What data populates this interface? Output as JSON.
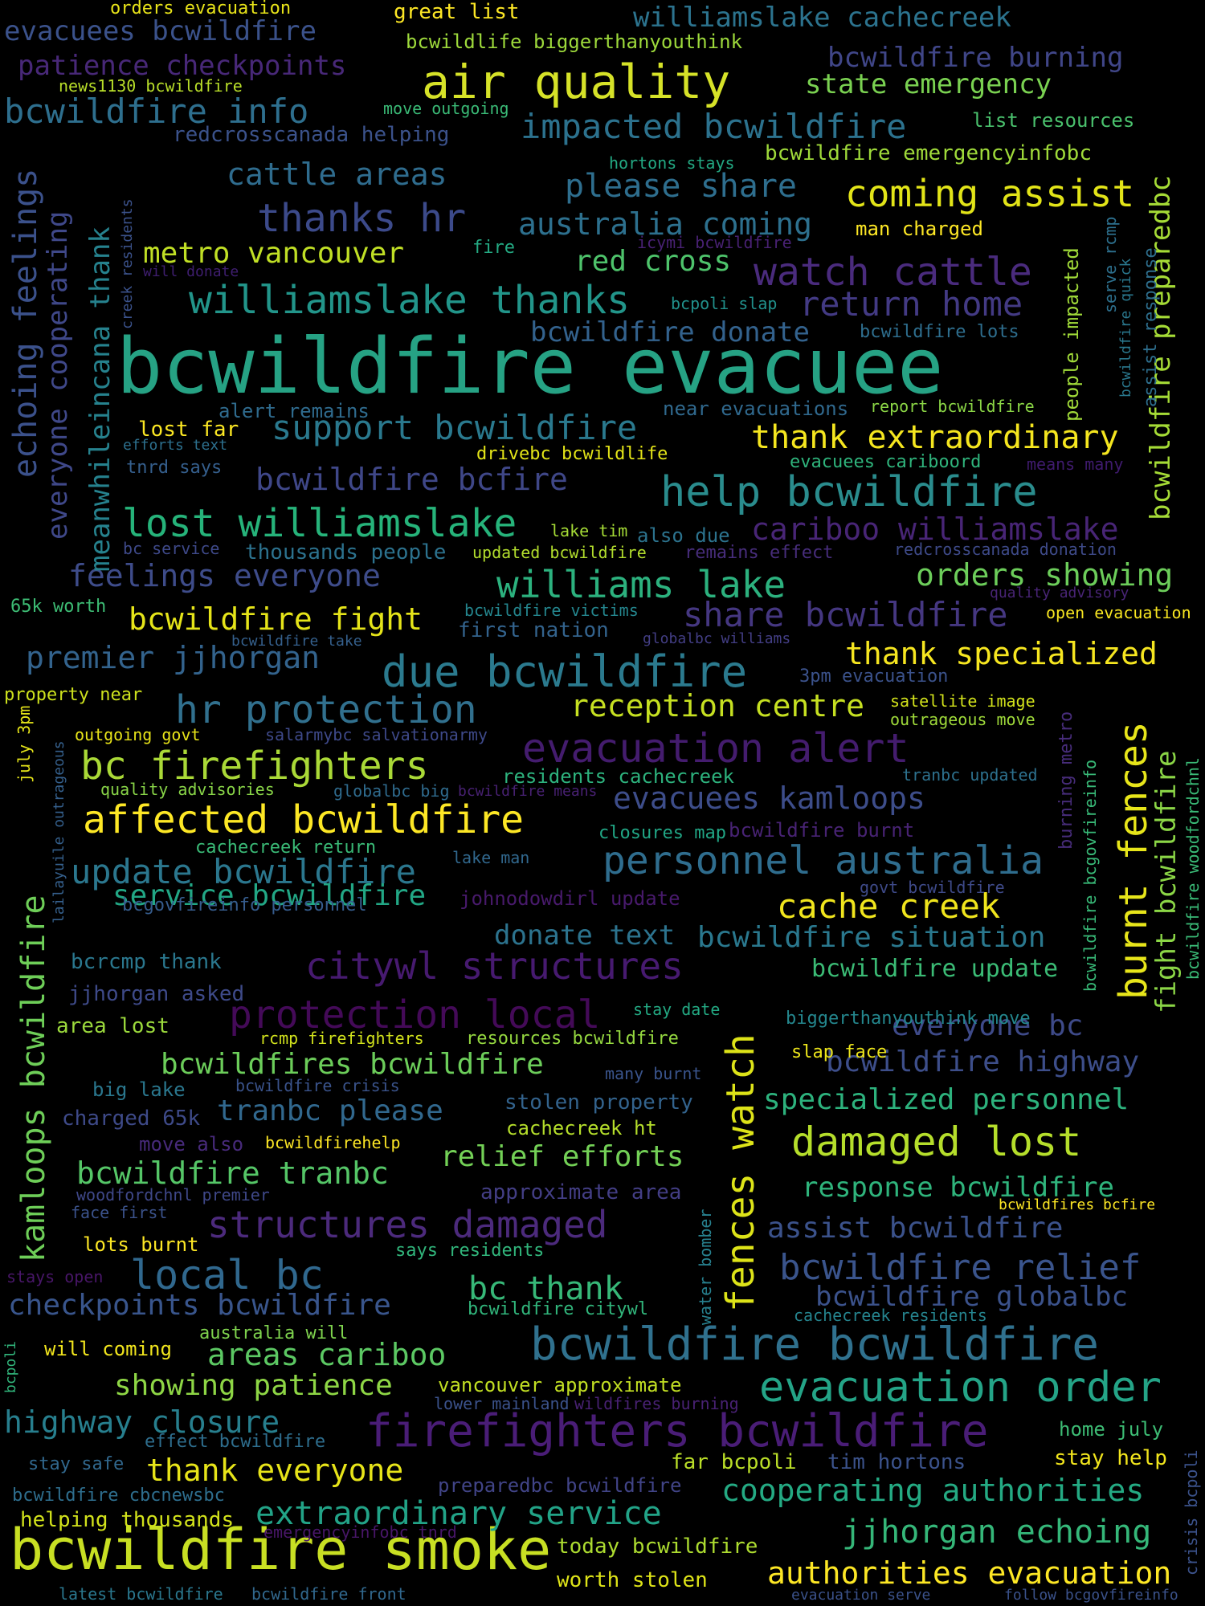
{
  "words": [
    {
      "text": "bcwildfire evacuee",
      "color": "#26a284"
    },
    {
      "text": "bcwildfire smoke",
      "color": "#c8df23"
    },
    {
      "text": "firefighters bcwildfire",
      "color": "#4a1d77"
    },
    {
      "text": "bcwildfire bcwildfire",
      "color": "#30718e"
    },
    {
      "text": "air quality",
      "color": "#d6e228"
    },
    {
      "text": "evacuation alert",
      "color": "#441c6e"
    },
    {
      "text": "due bcwildfire",
      "color": "#2b7a8e"
    },
    {
      "text": "citywl structures",
      "color": "#471a70"
    },
    {
      "text": "protection local",
      "color": "#440a58"
    },
    {
      "text": "structures damaged",
      "color": "#4c2a7c"
    },
    {
      "text": "evacuation order",
      "color": "#24a487"
    },
    {
      "text": "affected bcwildfire",
      "color": "#fde725"
    },
    {
      "text": "help bcwildfire",
      "color": "#2a8c8d"
    },
    {
      "text": "lost williamslake",
      "color": "#26b37a"
    },
    {
      "text": "williamslake thanks",
      "color": "#22958a"
    },
    {
      "text": "bc firefighters",
      "color": "#aad937"
    },
    {
      "text": "hr protection",
      "color": "#31708e"
    },
    {
      "text": "watch cattle",
      "color": "#4a2b7d"
    },
    {
      "text": "return home",
      "color": "#433a84"
    },
    {
      "text": "thanks hr",
      "color": "#3c4a8a"
    },
    {
      "text": "coming assist",
      "color": "#e2e418"
    },
    {
      "text": "fences watch",
      "color": "#dde318"
    },
    {
      "text": "burnt fences",
      "color": "#e7e51a"
    },
    {
      "text": "personnel australia",
      "color": "#2f6d8e"
    },
    {
      "text": "kamloops bcwildfire",
      "color": "#6ece58"
    },
    {
      "text": "bcwildfire relief",
      "color": "#3a548c"
    },
    {
      "text": "damaged lost",
      "color": "#b5de2b"
    },
    {
      "text": "impacted bcwildfire",
      "color": "#2c728e"
    },
    {
      "text": "cache creek",
      "color": "#f0e51d"
    },
    {
      "text": "williams lake",
      "color": "#2cb17e"
    },
    {
      "text": "update bcwildfire",
      "color": "#2b778e"
    },
    {
      "text": "local bc",
      "color": "#30688e"
    },
    {
      "text": "echoing feelings",
      "color": "#3b518b"
    },
    {
      "text": "bcwildfire info",
      "color": "#2e6f8e"
    },
    {
      "text": "jjhorgan echoing",
      "color": "#35b779"
    },
    {
      "text": "authorities evacuation",
      "color": "#fde725"
    },
    {
      "text": "extraordinary service",
      "color": "#22a387"
    },
    {
      "text": "cooperating authorities",
      "color": "#24aa83"
    },
    {
      "text": "support bcwildfire",
      "color": "#2a798e"
    },
    {
      "text": "thank extraordinary",
      "color": "#f5e61f"
    },
    {
      "text": "bcwildfire bcfire",
      "color": "#3f4788"
    },
    {
      "text": "share bcwildfire",
      "color": "#453781"
    },
    {
      "text": "feelings everyone",
      "color": "#3e4c8a"
    },
    {
      "text": "bcwildfire fight",
      "color": "#e5e419"
    },
    {
      "text": "premier jjhorgan",
      "color": "#33638d"
    },
    {
      "text": "reception centre",
      "color": "#c6e021"
    },
    {
      "text": "evacuees kamloops",
      "color": "#3d4d8a"
    },
    {
      "text": "checkpoints bcwildfire",
      "color": "#39558c"
    },
    {
      "text": "bcwildfire tranbc",
      "color": "#55c667"
    },
    {
      "text": "highway closure",
      "color": "#277f8e"
    },
    {
      "text": "thank everyone",
      "color": "#e7e419"
    },
    {
      "text": "areas cariboo",
      "color": "#5cc863"
    },
    {
      "text": "showing patience",
      "color": "#8ed645"
    },
    {
      "text": "patience checkpoints",
      "color": "#482878"
    },
    {
      "text": "evacuees bcwildfire",
      "color": "#3b528b"
    },
    {
      "text": "williamslake cachecreek",
      "color": "#2c738e"
    },
    {
      "text": "bcwildfire burning",
      "color": "#404688"
    },
    {
      "text": "state emergency",
      "color": "#7ad151"
    },
    {
      "text": "please share",
      "color": "#2e6e8e"
    },
    {
      "text": "australia coming",
      "color": "#2d708e"
    },
    {
      "text": "cattle areas",
      "color": "#2f6c8e"
    },
    {
      "text": "metro vancouver",
      "color": "#c0df25"
    },
    {
      "text": "red cross",
      "color": "#4ec36b"
    },
    {
      "text": "bcwildfire donate",
      "color": "#33628d"
    },
    {
      "text": "everyone cooperating",
      "color": "#3f4889"
    },
    {
      "text": "meanwhileincana thank",
      "color": "#26828e"
    },
    {
      "text": "bcwildfire preparedbc",
      "color": "#a5db36"
    },
    {
      "text": "cariboo williamslake",
      "color": "#482576"
    },
    {
      "text": "orders showing",
      "color": "#6ccd5a"
    },
    {
      "text": "thank specialized",
      "color": "#f6e620"
    },
    {
      "text": "fight bcwildfire",
      "color": "#8bd646"
    },
    {
      "text": "service bcwildfire",
      "color": "#22a785"
    },
    {
      "text": "donate text",
      "color": "#2c738e"
    },
    {
      "text": "bcwildfire situation",
      "color": "#2a788e"
    },
    {
      "text": "bcwildfire update",
      "color": "#3bbb75"
    },
    {
      "text": "everyone bc",
      "color": "#3e4a89"
    },
    {
      "text": "bcwildfire highway",
      "color": "#3d4e8a"
    },
    {
      "text": "specialized personnel",
      "color": "#2db27d"
    },
    {
      "text": "bcwildfires bcwildfire",
      "color": "#6ccd5a"
    },
    {
      "text": "tranbc please",
      "color": "#31688e"
    },
    {
      "text": "relief efforts",
      "color": "#73d056"
    },
    {
      "text": "response bcwildfire",
      "color": "#2fb47c"
    },
    {
      "text": "assist bcwildfire",
      "color": "#3b528b"
    },
    {
      "text": "bcwildfire globalbc",
      "color": "#3b528b"
    },
    {
      "text": "bc thank",
      "color": "#37b878"
    },
    {
      "text": "thousands people",
      "color": "#2c728e"
    },
    {
      "text": "alert remains",
      "color": "#2f6b8e"
    },
    {
      "text": "near evacuations",
      "color": "#30698e"
    },
    {
      "text": "lost far",
      "color": "#fbe723"
    },
    {
      "text": "drivebc bcwildlife",
      "color": "#e3e418"
    },
    {
      "text": "evacuees cariboord",
      "color": "#2fb47c"
    },
    {
      "text": "report bcwildfire",
      "color": "#8bd646"
    },
    {
      "text": "bcwildfire lots",
      "color": "#2e6e8e"
    },
    {
      "text": "man charged",
      "color": "#fde725"
    },
    {
      "text": "people impacted",
      "color": "#a0da39"
    },
    {
      "text": "assist response",
      "color": "#2e6f8e"
    },
    {
      "text": "serve rcmp",
      "color": "#2d708e"
    },
    {
      "text": "bcwildfire quick",
      "color": "#2a788e"
    },
    {
      "text": "bcpoli slap",
      "color": "#21918c"
    },
    {
      "text": "icymi bcwildfire",
      "color": "#482173"
    },
    {
      "text": "fire",
      "color": "#24aa83"
    },
    {
      "text": "will donate",
      "color": "#3f1e70"
    },
    {
      "text": "creek residents",
      "color": "#3b528b"
    },
    {
      "text": "hortons stays",
      "color": "#23a983"
    },
    {
      "text": "bcwildfire emergencyinfobc",
      "color": "#9fda3a"
    },
    {
      "text": "list resources",
      "color": "#4ac16d"
    },
    {
      "text": "redcrosscanada helping",
      "color": "#3b528b"
    },
    {
      "text": "move outgoing",
      "color": "#3aba76"
    },
    {
      "text": "news1130 bcwildfire",
      "color": "#b8de29"
    },
    {
      "text": "orders evacuation",
      "color": "#e8e419"
    },
    {
      "text": "great list",
      "color": "#fde725"
    },
    {
      "text": "bcwildlife biggerthanyouthink",
      "color": "#9dd93b"
    },
    {
      "text": "efforts text",
      "color": "#2d708e"
    },
    {
      "text": "tnrd says",
      "color": "#355f8d"
    },
    {
      "text": "means many",
      "color": "#3f1b6e"
    },
    {
      "text": "lake tim",
      "color": "#a5db36"
    },
    {
      "text": "also due",
      "color": "#2c738e"
    },
    {
      "text": "updated bcwildfire",
      "color": "#b2dd2d"
    },
    {
      "text": "remains effect",
      "color": "#472d7b"
    },
    {
      "text": "redcrosscanada donation",
      "color": "#3e4a89"
    },
    {
      "text": "bc service",
      "color": "#3e4989"
    },
    {
      "text": "65k worth",
      "color": "#3dbc74"
    },
    {
      "text": "bcwildfire victims",
      "color": "#24868e"
    },
    {
      "text": "first nation",
      "color": "#33638d"
    },
    {
      "text": "quality advisory",
      "color": "#482475"
    },
    {
      "text": "open evacuation",
      "color": "#f8e621"
    },
    {
      "text": "bcwildfire take",
      "color": "#35608d"
    },
    {
      "text": "globalbc williams",
      "color": "#433e85"
    },
    {
      "text": "3pm evacuation",
      "color": "#3b528b"
    },
    {
      "text": "property near",
      "color": "#cde11d"
    },
    {
      "text": "july 3pm",
      "color": "#e5e419"
    },
    {
      "text": "lailayuile outrageous",
      "color": "#35608d"
    },
    {
      "text": "outgoing govt",
      "color": "#e8e419"
    },
    {
      "text": "salarmybc salvationarmy",
      "color": "#3e4989"
    },
    {
      "text": "satellite image",
      "color": "#d2e21b"
    },
    {
      "text": "outrageous move",
      "color": "#9fda3a"
    },
    {
      "text": "burning metro",
      "color": "#472c7a"
    },
    {
      "text": "bcwildfire bcgovfireinfo",
      "color": "#38b977"
    },
    {
      "text": "bcwildfire woodfordchnl",
      "color": "#3aba76"
    },
    {
      "text": "quality advisories",
      "color": "#89d548"
    },
    {
      "text": "globalbc big",
      "color": "#2f6b8e"
    },
    {
      "text": "bcwildfire means",
      "color": "#482173"
    },
    {
      "text": "residents cachecreek",
      "color": "#2db27d"
    },
    {
      "text": "tranbc updated",
      "color": "#2d718e"
    },
    {
      "text": "cachecreek return",
      "color": "#3aba76"
    },
    {
      "text": "lake man",
      "color": "#31688e"
    },
    {
      "text": "closures map",
      "color": "#21a685"
    },
    {
      "text": "bcwildfire burnt",
      "color": "#482374"
    },
    {
      "text": "govt bcwildfire",
      "color": "#3e4a89"
    },
    {
      "text": "bcgovfireinfo personnel",
      "color": "#365c8d"
    },
    {
      "text": "johnodowdirl update",
      "color": "#481a6c"
    },
    {
      "text": "bcrcmp thank",
      "color": "#2a778e"
    },
    {
      "text": "jjhorgan asked",
      "color": "#3e4a89"
    },
    {
      "text": "area lost",
      "color": "#9bd93c"
    },
    {
      "text": "stay date",
      "color": "#23a983"
    },
    {
      "text": "rcmp firefighters",
      "color": "#d0e11c"
    },
    {
      "text": "resources bcwildfire",
      "color": "#95d840"
    },
    {
      "text": "biggerthanyouthink move",
      "color": "#24878e"
    },
    {
      "text": "slap face",
      "color": "#ece51b"
    },
    {
      "text": "big lake",
      "color": "#2a778e"
    },
    {
      "text": "bcwildfire crisis",
      "color": "#3a538b"
    },
    {
      "text": "many burnt",
      "color": "#3a548c"
    },
    {
      "text": "charged 65k",
      "color": "#3e4a89"
    },
    {
      "text": "stolen property",
      "color": "#33638d"
    },
    {
      "text": "cachecreek ht",
      "color": "#b5de2b"
    },
    {
      "text": "move also",
      "color": "#472a7a"
    },
    {
      "text": "bcwildfirehelp",
      "color": "#fde725"
    },
    {
      "text": "approximate area",
      "color": "#433e85"
    },
    {
      "text": "woodfordchnl premier",
      "color": "#3f4889"
    },
    {
      "text": "face first",
      "color": "#3b528b"
    },
    {
      "text": "bcwildfires bcfire",
      "color": "#fde725"
    },
    {
      "text": "lots burnt",
      "color": "#fde725"
    },
    {
      "text": "says residents",
      "color": "#31b57b"
    },
    {
      "text": "water bomber",
      "color": "#27808e"
    },
    {
      "text": "stays open",
      "color": "#481668"
    },
    {
      "text": "bcwildfire citywl",
      "color": "#31b57b"
    },
    {
      "text": "cachecreek residents",
      "color": "#25848e"
    },
    {
      "text": "australia will",
      "color": "#7fd34e"
    },
    {
      "text": "will coming",
      "color": "#f1e51d"
    },
    {
      "text": "vancouver approximate",
      "color": "#c2df23"
    },
    {
      "text": "lower mainland",
      "color": "#3b528b"
    },
    {
      "text": "wildfires burning",
      "color": "#482173"
    },
    {
      "text": "home july",
      "color": "#3dbc74"
    },
    {
      "text": "effect bcwildfire",
      "color": "#2e6e8e"
    },
    {
      "text": "stay safe",
      "color": "#31688e"
    },
    {
      "text": "far bcpoli",
      "color": "#bade28"
    },
    {
      "text": "tim hortons",
      "color": "#3b528b"
    },
    {
      "text": "stay help",
      "color": "#f1e51d"
    },
    {
      "text": "preparedbc bcwildfire",
      "color": "#414487"
    },
    {
      "text": "bcwildfire cbcnewsbc",
      "color": "#2e6e8e"
    },
    {
      "text": "helping thousands",
      "color": "#d2e21b"
    },
    {
      "text": "emergencyinfobc tnrd",
      "color": "#481668"
    },
    {
      "text": "today bcwildfire",
      "color": "#addc30"
    },
    {
      "text": "worth stolen",
      "color": "#dde318"
    },
    {
      "text": "latest bcwildfire",
      "color": "#2a778e"
    },
    {
      "text": "bcwildfire front",
      "color": "#31688e"
    },
    {
      "text": "evacuation serve",
      "color": "#3b528b"
    },
    {
      "text": "follow bcgovfireinfo",
      "color": "#3b528b"
    },
    {
      "text": "crisis bcpoli",
      "color": "#3b528b"
    },
    {
      "text": "bcpoli",
      "color": "#31b57b"
    }
  ]
}
